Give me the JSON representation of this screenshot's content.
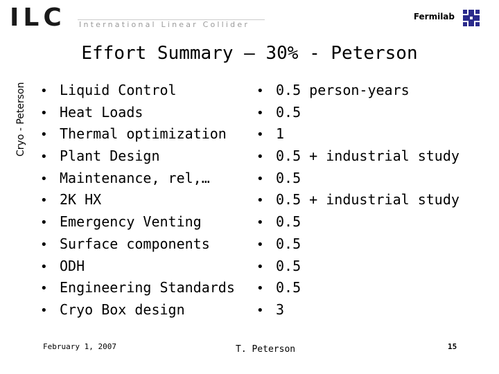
{
  "header": {
    "logo_text": "ILC",
    "logo_subtitle": "International Linear Collider",
    "lab_name": "Fermilab"
  },
  "side_label": "Cryo - Peterson",
  "title": "Effort Summary – 30% - Peterson",
  "tasks": [
    "Liquid Control",
    "Heat Loads",
    "Thermal optimization",
    "Plant Design",
    "Maintenance, rel,…",
    "2K HX",
    "Emergency Venting",
    "Surface components",
    "ODH",
    "Engineering Standards",
    "Cryo Box design"
  ],
  "efforts": [
    "0.5 person-years",
    "0.5",
    "1",
    "0.5 + industrial study",
    "0.5",
    "0.5 + industrial study",
    "0.5",
    "0.5",
    "0.5",
    "0.5",
    "3"
  ],
  "bullet_char": "•",
  "footer": {
    "date": "February 1, 2007",
    "author": "T. Peterson",
    "page": "15"
  }
}
